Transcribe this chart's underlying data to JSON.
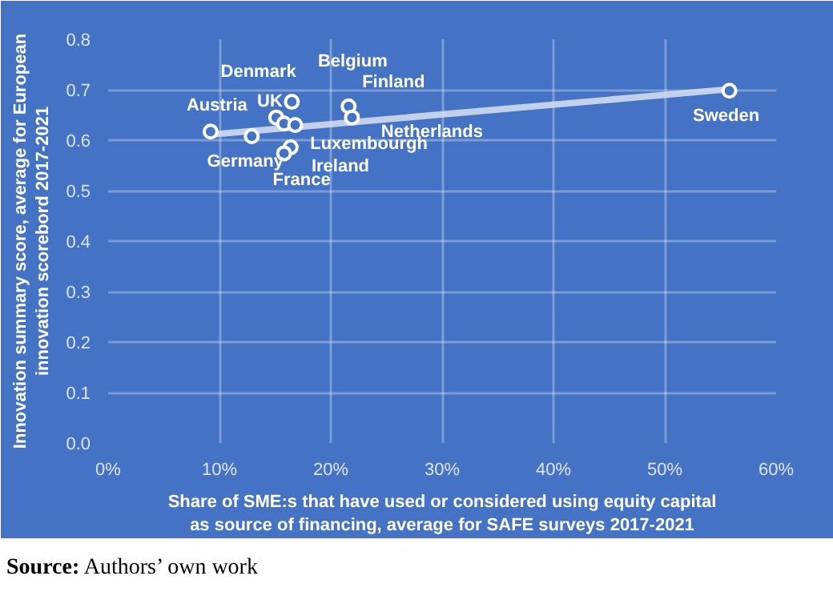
{
  "chart_data": {
    "type": "scatter",
    "xlabel": "Share of SME:s that have used or considered using equity capital\nas source of financing, average for SAFE surveys 2017-2021",
    "ylabel": "Innovation summary score, average for European\ninnovation scorebord 2017-2021",
    "xlim": [
      0,
      60
    ],
    "ylim": [
      0,
      0.8
    ],
    "xticks": [
      {
        "value": 0,
        "label": "0%"
      },
      {
        "value": 10,
        "label": "10%"
      },
      {
        "value": 20,
        "label": "20%"
      },
      {
        "value": 30,
        "label": "30%"
      },
      {
        "value": 40,
        "label": "40%"
      },
      {
        "value": 50,
        "label": "50%"
      },
      {
        "value": 60,
        "label": "60%"
      }
    ],
    "yticks": [
      {
        "value": 0,
        "label": "0.0"
      },
      {
        "value": 0.1,
        "label": "0.1"
      },
      {
        "value": 0.2,
        "label": "0.2"
      },
      {
        "value": 0.3,
        "label": "0.3"
      },
      {
        "value": 0.4,
        "label": "0.4"
      },
      {
        "value": 0.5,
        "label": "0.5"
      },
      {
        "value": 0.6,
        "label": "0.6"
      },
      {
        "value": 0.7,
        "label": "0.7"
      },
      {
        "value": 0.8,
        "label": "0.8"
      }
    ],
    "grid": true,
    "series": [
      {
        "type": "line",
        "color": "#d9e1f2",
        "x": [
          9.2,
          55.8
        ],
        "values": [
          0.611,
          0.701
        ]
      },
      {
        "marker": "circle",
        "color": "#ffffff",
        "x": [
          9.2,
          12.9,
          15.1,
          16.5,
          15.8,
          16.8,
          16.4,
          15.8,
          21.6,
          21.9,
          55.8
        ],
        "values": [
          0.617,
          0.608,
          0.645,
          0.676,
          0.633,
          0.63,
          0.586,
          0.574,
          0.667,
          0.645,
          0.698
        ]
      }
    ],
    "annotations": [
      {
        "text": "Austria",
        "x": 9.2,
        "y": 0.617
      },
      {
        "text": "Germany",
        "x": 12.9,
        "y": 0.608
      },
      {
        "text": "UK",
        "x": 15.1,
        "y": 0.645
      },
      {
        "text": "Belgium",
        "x": 16.5,
        "y": 0.676
      },
      {
        "text": "Denmark",
        "x": 15.8,
        "y": 0.633
      },
      {
        "text": "Luxembourgh",
        "x": 16.8,
        "y": 0.63
      },
      {
        "text": "Ireland",
        "x": 16.4,
        "y": 0.586
      },
      {
        "text": "France",
        "x": 15.8,
        "y": 0.574
      },
      {
        "text": "Finland",
        "x": 21.6,
        "y": 0.667
      },
      {
        "text": "Netherlands",
        "x": 21.9,
        "y": 0.645
      },
      {
        "text": "Sweden",
        "x": 55.8,
        "y": 0.698
      },
      "Source: Authors’ own work"
    ]
  }
}
